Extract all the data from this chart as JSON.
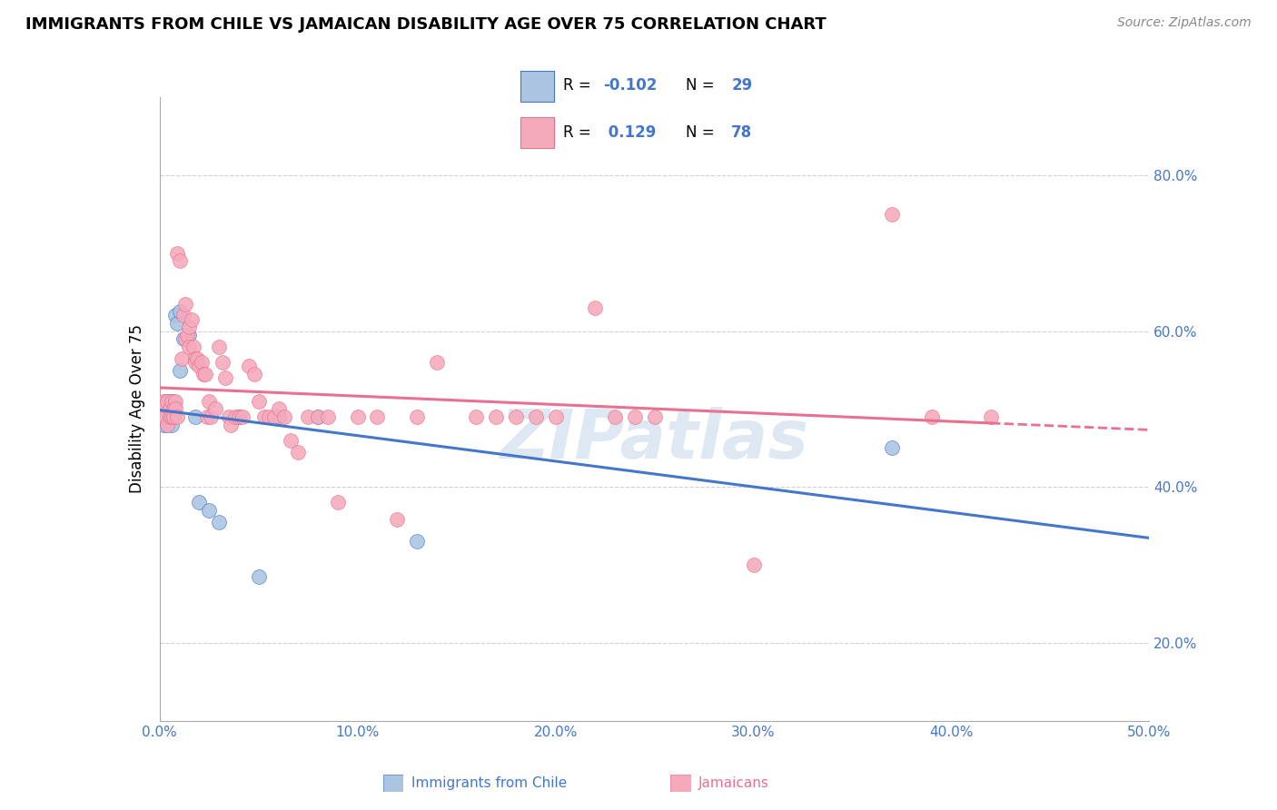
{
  "title": "IMMIGRANTS FROM CHILE VS JAMAICAN DISABILITY AGE OVER 75 CORRELATION CHART",
  "source": "Source: ZipAtlas.com",
  "ylabel": "Disability Age Over 75",
  "legend_label_1": "Immigrants from Chile",
  "legend_label_2": "Jamaicans",
  "r1": -0.102,
  "n1": 29,
  "r2": 0.129,
  "n2": 78,
  "color1": "#aac4e2",
  "color2": "#f5aabb",
  "line1_color": "#4477cc",
  "line2_color": "#e87090",
  "xlim": [
    0.0,
    0.5
  ],
  "ylim": [
    0.1,
    0.9
  ],
  "xticks": [
    0.0,
    0.1,
    0.2,
    0.3,
    0.4,
    0.5
  ],
  "yticks": [
    0.2,
    0.4,
    0.6,
    0.8
  ],
  "ytick_right_labels": [
    "20.0%",
    "40.0%",
    "60.0%",
    "80.0%"
  ],
  "xtick_labels": [
    "0.0%",
    "10.0%",
    "20.0%",
    "30.0%",
    "40.0%",
    "50.0%"
  ],
  "watermark": "ZIPatlas",
  "chile_points": [
    [
      0.001,
      0.49
    ],
    [
      0.002,
      0.5
    ],
    [
      0.002,
      0.48
    ],
    [
      0.003,
      0.51
    ],
    [
      0.003,
      0.49
    ],
    [
      0.004,
      0.5
    ],
    [
      0.004,
      0.48
    ],
    [
      0.005,
      0.51
    ],
    [
      0.005,
      0.495
    ],
    [
      0.006,
      0.5
    ],
    [
      0.006,
      0.48
    ],
    [
      0.007,
      0.51
    ],
    [
      0.007,
      0.49
    ],
    [
      0.008,
      0.62
    ],
    [
      0.009,
      0.61
    ],
    [
      0.01,
      0.55
    ],
    [
      0.01,
      0.625
    ],
    [
      0.012,
      0.59
    ],
    [
      0.015,
      0.595
    ],
    [
      0.018,
      0.49
    ],
    [
      0.02,
      0.38
    ],
    [
      0.025,
      0.37
    ],
    [
      0.03,
      0.355
    ],
    [
      0.04,
      0.49
    ],
    [
      0.05,
      0.285
    ],
    [
      0.06,
      0.49
    ],
    [
      0.08,
      0.49
    ],
    [
      0.13,
      0.33
    ],
    [
      0.37,
      0.45
    ]
  ],
  "jamaican_points": [
    [
      0.001,
      0.5
    ],
    [
      0.002,
      0.49
    ],
    [
      0.002,
      0.51
    ],
    [
      0.003,
      0.49
    ],
    [
      0.003,
      0.505
    ],
    [
      0.004,
      0.48
    ],
    [
      0.004,
      0.51
    ],
    [
      0.005,
      0.5
    ],
    [
      0.005,
      0.49
    ],
    [
      0.006,
      0.51
    ],
    [
      0.006,
      0.49
    ],
    [
      0.007,
      0.5
    ],
    [
      0.007,
      0.49
    ],
    [
      0.008,
      0.51
    ],
    [
      0.008,
      0.5
    ],
    [
      0.009,
      0.49
    ],
    [
      0.009,
      0.7
    ],
    [
      0.01,
      0.69
    ],
    [
      0.011,
      0.565
    ],
    [
      0.012,
      0.62
    ],
    [
      0.013,
      0.59
    ],
    [
      0.013,
      0.635
    ],
    [
      0.014,
      0.595
    ],
    [
      0.015,
      0.605
    ],
    [
      0.015,
      0.58
    ],
    [
      0.016,
      0.615
    ],
    [
      0.017,
      0.58
    ],
    [
      0.018,
      0.565
    ],
    [
      0.018,
      0.56
    ],
    [
      0.019,
      0.565
    ],
    [
      0.02,
      0.555
    ],
    [
      0.021,
      0.56
    ],
    [
      0.022,
      0.545
    ],
    [
      0.023,
      0.545
    ],
    [
      0.024,
      0.49
    ],
    [
      0.025,
      0.51
    ],
    [
      0.026,
      0.49
    ],
    [
      0.028,
      0.5
    ],
    [
      0.03,
      0.58
    ],
    [
      0.032,
      0.56
    ],
    [
      0.033,
      0.54
    ],
    [
      0.035,
      0.49
    ],
    [
      0.036,
      0.48
    ],
    [
      0.038,
      0.49
    ],
    [
      0.04,
      0.49
    ],
    [
      0.042,
      0.49
    ],
    [
      0.045,
      0.555
    ],
    [
      0.048,
      0.545
    ],
    [
      0.05,
      0.51
    ],
    [
      0.053,
      0.49
    ],
    [
      0.055,
      0.49
    ],
    [
      0.058,
      0.49
    ],
    [
      0.06,
      0.5
    ],
    [
      0.063,
      0.49
    ],
    [
      0.066,
      0.46
    ],
    [
      0.07,
      0.445
    ],
    [
      0.075,
      0.49
    ],
    [
      0.08,
      0.49
    ],
    [
      0.085,
      0.49
    ],
    [
      0.09,
      0.38
    ],
    [
      0.1,
      0.49
    ],
    [
      0.11,
      0.49
    ],
    [
      0.12,
      0.358
    ],
    [
      0.13,
      0.49
    ],
    [
      0.14,
      0.56
    ],
    [
      0.16,
      0.49
    ],
    [
      0.17,
      0.49
    ],
    [
      0.18,
      0.49
    ],
    [
      0.19,
      0.49
    ],
    [
      0.2,
      0.49
    ],
    [
      0.22,
      0.63
    ],
    [
      0.23,
      0.49
    ],
    [
      0.24,
      0.49
    ],
    [
      0.25,
      0.49
    ],
    [
      0.3,
      0.3
    ],
    [
      0.37,
      0.75
    ],
    [
      0.39,
      0.49
    ],
    [
      0.42,
      0.49
    ]
  ]
}
